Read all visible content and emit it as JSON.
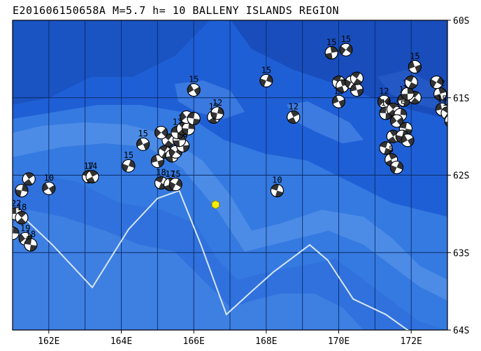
{
  "title": "E201606150658A M=5.7 h= 10 BALLENY ISLANDS REGION",
  "map": {
    "lon_range": [
      161.0,
      173.0
    ],
    "lat_range": [
      -64.0,
      -60.0
    ],
    "lon_ticks": [
      {
        "value": 162,
        "label": "162E"
      },
      {
        "value": 164,
        "label": "164E"
      },
      {
        "value": 166,
        "label": "166E"
      },
      {
        "value": 168,
        "label": "168E"
      },
      {
        "value": 170,
        "label": "170E"
      },
      {
        "value": 172,
        "label": "172E"
      }
    ],
    "lat_ticks": [
      {
        "value": -60,
        "label": "60S"
      },
      {
        "value": -61,
        "label": "61S"
      },
      {
        "value": -62,
        "label": "62S"
      },
      {
        "value": -63,
        "label": "63S"
      },
      {
        "value": -64,
        "label": "64S"
      }
    ],
    "grid_step_lon": 1,
    "grid_step_lat": 1,
    "colors": {
      "ocean_deep": "#1f5fd6",
      "ocean_mid": "#3a7fe3",
      "ridge": "#5b98ea",
      "plate_boundary": "#d7e6f7",
      "grid": "#0a2a66",
      "epicenter": "#ffee00",
      "beachball_dark": "#333333",
      "beachball_light": "#ffffff"
    },
    "epicenter": {
      "lon": 166.6,
      "lat": -62.38,
      "icon": "epicenter-star-icon"
    },
    "plate_boundary": [
      [
        161.2,
        -62.5
      ],
      [
        162.1,
        -62.9
      ],
      [
        162.7,
        -63.2
      ],
      [
        163.2,
        -63.45
      ],
      [
        164.2,
        -62.7
      ],
      [
        165.0,
        -62.3
      ],
      [
        165.6,
        -62.2
      ],
      [
        166.2,
        -62.9
      ],
      [
        166.9,
        -63.8
      ],
      [
        167.6,
        -63.5
      ],
      [
        168.2,
        -63.25
      ],
      [
        169.2,
        -62.9
      ],
      [
        169.7,
        -63.1
      ],
      [
        170.4,
        -63.6
      ],
      [
        171.3,
        -63.8
      ],
      [
        172.2,
        -64.1
      ]
    ],
    "events": [
      {
        "lon": 161.1,
        "lat": -62.5,
        "label": "22"
      },
      {
        "lon": 161.25,
        "lat": -62.55,
        "label": "18"
      },
      {
        "lon": 161.0,
        "lat": -62.75,
        "label": ""
      },
      {
        "lon": 161.35,
        "lat": -62.82,
        "label": "19"
      },
      {
        "lon": 161.5,
        "lat": -62.9,
        "label": "18"
      },
      {
        "lon": 161.45,
        "lat": -62.05,
        "label": ""
      },
      {
        "lon": 161.25,
        "lat": -62.2,
        "label": ""
      },
      {
        "lon": 162.0,
        "lat": -62.17,
        "label": "10"
      },
      {
        "lon": 163.1,
        "lat": -62.02,
        "label": "17"
      },
      {
        "lon": 163.2,
        "lat": -62.02,
        "label": "14"
      },
      {
        "lon": 164.2,
        "lat": -61.88,
        "label": "15"
      },
      {
        "lon": 164.6,
        "lat": -61.6,
        "label": "15"
      },
      {
        "lon": 165.1,
        "lat": -62.1,
        "label": "18"
      },
      {
        "lon": 165.35,
        "lat": -62.12,
        "label": "17"
      },
      {
        "lon": 165.5,
        "lat": -62.12,
        "label": "15"
      },
      {
        "lon": 165.0,
        "lat": -61.82,
        "label": ""
      },
      {
        "lon": 165.2,
        "lat": -61.7,
        "label": ""
      },
      {
        "lon": 165.4,
        "lat": -61.75,
        "label": "12"
      },
      {
        "lon": 165.5,
        "lat": -61.7,
        "label": ""
      },
      {
        "lon": 165.7,
        "lat": -61.62,
        "label": "14"
      },
      {
        "lon": 165.3,
        "lat": -61.55,
        "label": ""
      },
      {
        "lon": 165.6,
        "lat": -61.55,
        "label": ""
      },
      {
        "lon": 165.1,
        "lat": -61.45,
        "label": ""
      },
      {
        "lon": 165.55,
        "lat": -61.45,
        "label": "12"
      },
      {
        "lon": 165.7,
        "lat": -61.4,
        "label": "12"
      },
      {
        "lon": 165.85,
        "lat": -61.4,
        "label": ""
      },
      {
        "lon": 165.8,
        "lat": -61.25,
        "label": ""
      },
      {
        "lon": 166.0,
        "lat": -61.27,
        "label": ""
      },
      {
        "lon": 166.55,
        "lat": -61.25,
        "label": "12"
      },
      {
        "lon": 166.65,
        "lat": -61.2,
        "label": "12"
      },
      {
        "lon": 166.0,
        "lat": -60.9,
        "label": "15"
      },
      {
        "lon": 168.3,
        "lat": -62.2,
        "label": "10"
      },
      {
        "lon": 168.75,
        "lat": -61.25,
        "label": "12"
      },
      {
        "lon": 168.0,
        "lat": -60.78,
        "label": "15"
      },
      {
        "lon": 170.0,
        "lat": -61.05,
        "label": "15"
      },
      {
        "lon": 170.0,
        "lat": -60.8,
        "label": ""
      },
      {
        "lon": 170.1,
        "lat": -60.85,
        "label": ""
      },
      {
        "lon": 170.35,
        "lat": -60.8,
        "label": ""
      },
      {
        "lon": 170.5,
        "lat": -60.9,
        "label": ""
      },
      {
        "lon": 170.5,
        "lat": -60.75,
        "label": ""
      },
      {
        "lon": 169.8,
        "lat": -60.42,
        "label": "15"
      },
      {
        "lon": 170.2,
        "lat": -60.38,
        "label": "15"
      },
      {
        "lon": 171.8,
        "lat": -61.03,
        "label": "12"
      },
      {
        "lon": 172.1,
        "lat": -61.0,
        "label": ""
      },
      {
        "lon": 171.9,
        "lat": -60.95,
        "label": "12"
      },
      {
        "lon": 171.25,
        "lat": -61.05,
        "label": "12"
      },
      {
        "lon": 171.3,
        "lat": -61.2,
        "label": "14"
      },
      {
        "lon": 171.5,
        "lat": -61.15,
        "label": ""
      },
      {
        "lon": 171.7,
        "lat": -61.22,
        "label": "15"
      },
      {
        "lon": 171.6,
        "lat": -61.3,
        "label": ""
      },
      {
        "lon": 171.85,
        "lat": -61.4,
        "label": ""
      },
      {
        "lon": 171.5,
        "lat": -61.5,
        "label": ""
      },
      {
        "lon": 171.75,
        "lat": -61.5,
        "label": ""
      },
      {
        "lon": 171.9,
        "lat": -61.55,
        "label": ""
      },
      {
        "lon": 171.3,
        "lat": -61.65,
        "label": ""
      },
      {
        "lon": 171.45,
        "lat": -61.8,
        "label": "5"
      },
      {
        "lon": 171.6,
        "lat": -61.9,
        "label": ""
      },
      {
        "lon": 172.1,
        "lat": -60.6,
        "label": "15"
      },
      {
        "lon": 172.0,
        "lat": -60.8,
        "label": ""
      },
      {
        "lon": 172.8,
        "lat": -60.95,
        "label": "12"
      },
      {
        "lon": 172.7,
        "lat": -60.8,
        "label": ""
      },
      {
        "lon": 172.85,
        "lat": -61.15,
        "label": "15"
      },
      {
        "lon": 173.0,
        "lat": -61.2,
        "label": "15"
      },
      {
        "lon": 173.1,
        "lat": -61.3,
        "label": "1"
      }
    ]
  }
}
